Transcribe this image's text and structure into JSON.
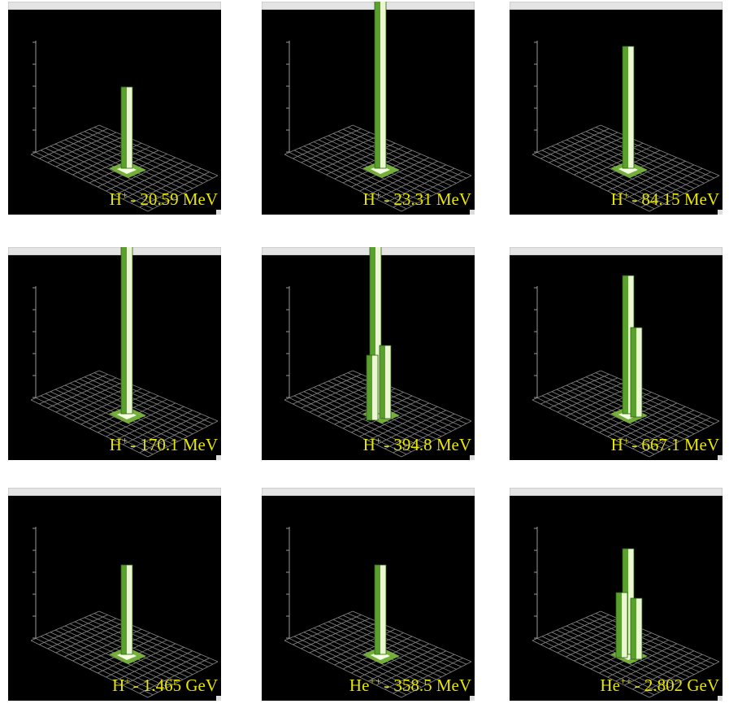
{
  "panels": [
    {
      "particle": "H",
      "charge": "+",
      "energy": "- 20.59 MeV"
    },
    {
      "particle": "H",
      "charge": "+",
      "energy": "- 23.31 MeV"
    },
    {
      "particle": "H",
      "charge": "+",
      "energy": "- 84.15 MeV"
    },
    {
      "particle": "H",
      "charge": "+",
      "energy": "- 170.1 MeV"
    },
    {
      "particle": "H",
      "charge": "+",
      "energy": "- 394.8 MeV"
    },
    {
      "particle": "H",
      "charge": "+",
      "energy": "- 667.1 MeV"
    },
    {
      "particle": "H",
      "charge": "+",
      "energy": "- 1.465 GeV"
    },
    {
      "particle": "He",
      "charge": "++",
      "energy": "- 358.5 MeV"
    },
    {
      "particle": "He",
      "charge": "++",
      "energy": "- 2.802 GeV"
    }
  ]
}
